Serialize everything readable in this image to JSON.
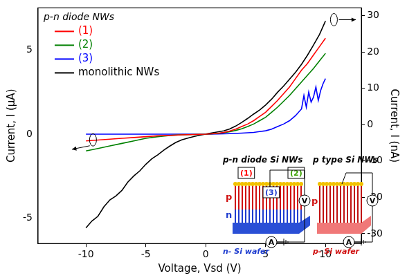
{
  "chart_data": {
    "type": "line",
    "x_label": "Voltage, Vsd (V)",
    "y_label": "Current, I (μA)",
    "y2_label": "Current, I (nA)",
    "xlim": [
      -14,
      13
    ],
    "xticks": [
      -10,
      -5,
      0,
      5,
      10
    ],
    "ylim": [
      -6.5,
      7.5
    ],
    "yticks": [
      -5,
      0,
      5
    ],
    "y2lim": [
      -32.7,
      32.1
    ],
    "y2ticks": [
      -30,
      -20,
      -10,
      0,
      10,
      20,
      30
    ],
    "grid": false,
    "legend": "upper left",
    "annotations": [
      "p-n diode NWs"
    ],
    "series": [
      {
        "name": "(1)",
        "color": "#ff0000",
        "axis": "y",
        "x": [
          -10,
          -9,
          -8,
          -7,
          -6,
          -5,
          -4,
          -3,
          -2,
          -1,
          0,
          0.5,
          1,
          1.5,
          2,
          2.5,
          3,
          3.5,
          4,
          4.5,
          5,
          5.5,
          6,
          6.5,
          7,
          7.5,
          8,
          8.5,
          9,
          9.5,
          10
        ],
        "values": [
          -0.4,
          -0.35,
          -0.3,
          -0.25,
          -0.2,
          -0.15,
          -0.1,
          -0.07,
          -0.04,
          -0.02,
          0,
          0.02,
          0.05,
          0.1,
          0.18,
          0.3,
          0.45,
          0.6,
          0.8,
          1.05,
          1.3,
          1.65,
          2.0,
          2.4,
          2.8,
          3.3,
          3.8,
          4.2,
          4.7,
          5.2,
          5.7
        ]
      },
      {
        "name": "(2)",
        "color": "#008000",
        "axis": "y",
        "x": [
          -10,
          -9,
          -8,
          -7,
          -6,
          -5,
          -4,
          -3,
          -2,
          -1,
          0,
          0.5,
          1,
          1.5,
          2,
          2.5,
          3,
          3.5,
          4,
          4.5,
          5,
          5.5,
          6,
          6.5,
          7,
          7.5,
          8,
          8.5,
          9,
          9.5,
          10
        ],
        "values": [
          -1.0,
          -0.85,
          -0.7,
          -0.55,
          -0.4,
          -0.25,
          -0.15,
          -0.08,
          -0.04,
          -0.02,
          0,
          0.02,
          0.04,
          0.08,
          0.14,
          0.22,
          0.32,
          0.45,
          0.6,
          0.8,
          1.0,
          1.3,
          1.6,
          1.95,
          2.3,
          2.7,
          3.1,
          3.5,
          3.9,
          4.35,
          4.8
        ]
      },
      {
        "name": "(3)",
        "color": "#0000ff",
        "axis": "y",
        "x": [
          -10,
          -8,
          -6,
          -4,
          -2,
          0,
          1,
          2,
          3,
          4,
          4.5,
          5,
          5.5,
          6,
          6.5,
          7,
          7.5,
          8,
          8.2,
          8.4,
          8.6,
          8.8,
          9,
          9.2,
          9.4,
          9.6,
          9.8,
          10
        ],
        "values": [
          0,
          0,
          0,
          0,
          0,
          0,
          0.01,
          0.03,
          0.06,
          0.1,
          0.15,
          0.2,
          0.3,
          0.45,
          0.6,
          0.8,
          1.1,
          1.5,
          2.3,
          1.6,
          2.5,
          1.9,
          2.2,
          2.8,
          2.0,
          2.6,
          3.0,
          3.3
        ]
      },
      {
        "name": "monolithic NWs",
        "color": "#000000",
        "axis": "y2",
        "x": [
          -10,
          -9.5,
          -9,
          -8.5,
          -8,
          -7.5,
          -7,
          -6.5,
          -6,
          -5.5,
          -5,
          -4.5,
          -4,
          -3.5,
          -3,
          -2.5,
          -2,
          -1.5,
          -1,
          -0.5,
          0,
          0.5,
          1,
          1.5,
          2,
          2.5,
          3,
          3.5,
          4,
          4.5,
          5,
          5.5,
          6,
          6.5,
          7,
          7.5,
          8,
          8.5,
          9,
          9.5,
          10
        ],
        "values": [
          -28.4,
          -26.5,
          -25.2,
          -22.6,
          -20.7,
          -19.6,
          -18.1,
          -15.8,
          -14.1,
          -12.7,
          -10.9,
          -9.4,
          -8.3,
          -7.0,
          -5.9,
          -4.9,
          -4.2,
          -3.7,
          -3.3,
          -2.9,
          -2.6,
          -2.3,
          -2.0,
          -1.7,
          -1.2,
          -0.4,
          0.6,
          1.7,
          2.9,
          4.0,
          5.4,
          7.0,
          8.9,
          10.6,
          12.5,
          14.4,
          16.6,
          19.1,
          21.9,
          24.8,
          28.5
        ]
      }
    ],
    "inset": {
      "left_title": "p-n diode Si NWs",
      "right_title": "p type Si NWs",
      "probe_labels": [
        "(1)",
        "(2)",
        "(3)"
      ],
      "left_layers": [
        "p",
        "n"
      ],
      "right_layer": "p",
      "meters": [
        "V",
        "A"
      ],
      "left_wafer": "n- Si wafer",
      "right_wafer": "p- Si wafer"
    }
  }
}
